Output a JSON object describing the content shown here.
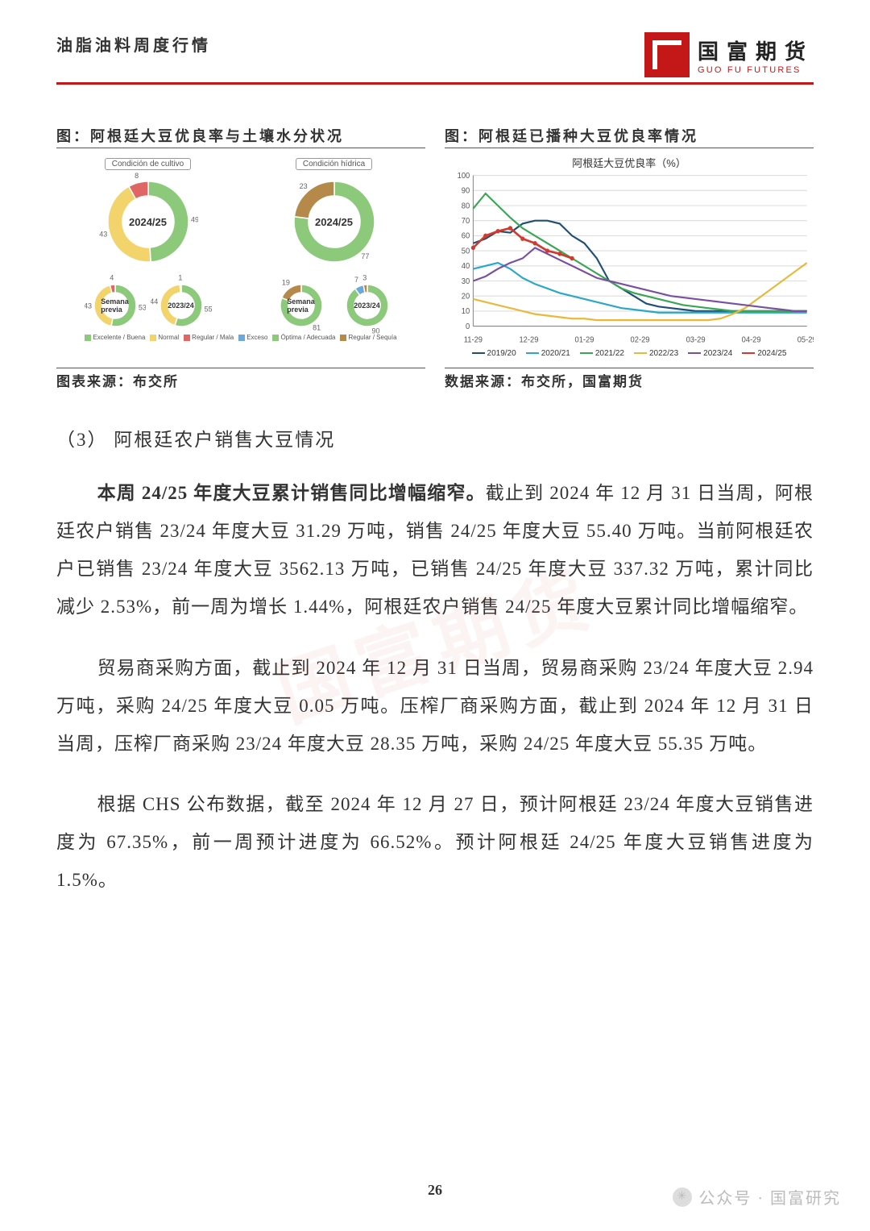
{
  "header": {
    "doc_title": "油脂油料周度行情",
    "logo_cn": "国富期货",
    "logo_en": "GUO FU FUTURES",
    "logo_bg": "#c41818"
  },
  "watermark_text": "国富期货",
  "chart_left": {
    "title": "图：阿根廷大豆优良率与土壤水分状况",
    "source_label": "图表来源：布交所",
    "header_cultivo": "Condición de cultivo",
    "header_hidrica": "Condición hídrica",
    "colors": {
      "excelente": "#8cc97a",
      "normal": "#f3d36b",
      "regular": "#e06666",
      "exceso": "#6aa9d9",
      "optima": "#8cc97a",
      "sequia": "#b5894a"
    },
    "legend_cultivo": [
      {
        "label": "Excelente / Buena",
        "key": "excelente"
      },
      {
        "label": "Normal",
        "key": "normal"
      },
      {
        "label": "Regular / Mala",
        "key": "regular"
      }
    ],
    "legend_hidrica": [
      {
        "label": "Exceso",
        "key": "exceso"
      },
      {
        "label": "Óptima / Adecuada",
        "key": "optima"
      },
      {
        "label": "Regular / Sequía",
        "key": "sequia"
      }
    ],
    "donuts": {
      "big_cultivo": {
        "center": "2024/25",
        "segments": [
          {
            "v": 49,
            "c": "excelente"
          },
          {
            "v": 43,
            "c": "normal"
          },
          {
            "v": 8,
            "c": "regular"
          }
        ]
      },
      "big_hidrica": {
        "center": "2024/25",
        "segments": [
          {
            "v": 77,
            "c": "optima"
          },
          {
            "v": 23,
            "c": "sequia"
          }
        ]
      },
      "sm_cultivo_prev": {
        "center": "Semana previa",
        "segments": [
          {
            "v": 53,
            "c": "excelente"
          },
          {
            "v": 43,
            "c": "normal"
          },
          {
            "v": 4,
            "c": "regular"
          }
        ]
      },
      "sm_cultivo_ly": {
        "center": "2023/24",
        "segments": [
          {
            "v": 55,
            "c": "excelente"
          },
          {
            "v": 44,
            "c": "normal"
          },
          {
            "v": 1,
            "c": "regular"
          }
        ]
      },
      "sm_hidrica_prev": {
        "center": "Semana previa",
        "segments": [
          {
            "v": 81,
            "c": "optima"
          },
          {
            "v": 19,
            "c": "sequia"
          }
        ]
      },
      "sm_hidrica_ly": {
        "center": "2023/24",
        "segments": [
          {
            "v": 90,
            "c": "optima"
          },
          {
            "v": 7,
            "c": "exceso"
          },
          {
            "v": 3,
            "c": "sequia"
          }
        ]
      }
    }
  },
  "chart_right": {
    "title": "图：阿根廷已播种大豆优良率情况",
    "inner_title": "阿根廷大豆优良率（%）",
    "source_label": "数据来源：布交所，国富期货",
    "ylim": [
      0,
      100
    ],
    "ytick_step": 10,
    "x_labels": [
      "11-29",
      "12-29",
      "01-29",
      "02-29",
      "03-29",
      "04-29",
      "05-29"
    ],
    "grid_color": "#dddddd",
    "background": "#ffffff",
    "series": [
      {
        "name": "2019/20",
        "color": "#1f4e79",
        "width": 2,
        "points": [
          55,
          58,
          63,
          62,
          68,
          70,
          70,
          68,
          60,
          55,
          45,
          30,
          25,
          20,
          15,
          13,
          12,
          11,
          10,
          10,
          10,
          10,
          10,
          10,
          10,
          10,
          10,
          10
        ]
      },
      {
        "name": "2020/21",
        "color": "#2aa8c9",
        "width": 2,
        "points": [
          38,
          40,
          42,
          38,
          32,
          28,
          25,
          22,
          20,
          18,
          16,
          14,
          12,
          11,
          10,
          9,
          9,
          9,
          9,
          9,
          9,
          9,
          9,
          9,
          9,
          9,
          9,
          9
        ]
      },
      {
        "name": "2021/22",
        "color": "#3aa655",
        "width": 2,
        "points": [
          78,
          88,
          80,
          72,
          65,
          60,
          55,
          50,
          45,
          40,
          35,
          30,
          25,
          22,
          20,
          18,
          16,
          14,
          13,
          12,
          11,
          10,
          10,
          10,
          10,
          10,
          10,
          10
        ]
      },
      {
        "name": "2022/23",
        "color": "#e8b93a",
        "width": 2,
        "points": [
          18,
          16,
          14,
          12,
          10,
          8,
          7,
          6,
          5,
          5,
          4,
          4,
          4,
          4,
          4,
          4,
          4,
          4,
          4,
          4,
          5,
          8,
          12,
          18,
          24,
          30,
          36,
          42
        ]
      },
      {
        "name": "2023/24",
        "color": "#7b4fa0",
        "width": 2,
        "points": [
          30,
          33,
          38,
          42,
          45,
          52,
          48,
          44,
          40,
          36,
          32,
          30,
          28,
          26,
          24,
          22,
          20,
          19,
          18,
          17,
          16,
          15,
          14,
          13,
          12,
          11,
          10,
          10
        ]
      },
      {
        "name": "2024/25",
        "color": "#d23a2e",
        "width": 2.5,
        "marker": "circle",
        "points": [
          52,
          60,
          63,
          65,
          58,
          55,
          50,
          48,
          45
        ]
      }
    ]
  },
  "section_head": "（3） 阿根廷农户销售大豆情况",
  "paragraphs": [
    "<strong>本周 24/25 年度大豆累计销售同比增幅缩窄。</strong>截止到 2024 年 12 月 31 日当周，阿根廷农户销售 23/24 年度大豆 31.29 万吨，销售 24/25 年度大豆 55.40 万吨。当前阿根廷农户已销售 23/24 年度大豆 3562.13 万吨，已销售 24/25 年度大豆 337.32 万吨，累计同比减少 2.53%，前一周为增长 1.44%，阿根廷农户销售 24/25 年度大豆累计同比增幅缩窄。",
    "贸易商采购方面，截止到 2024 年 12 月 31 日当周，贸易商采购 23/24 年度大豆 2.94 万吨，采购 24/25 年度大豆 0.05 万吨。压榨厂商采购方面，截止到 2024 年 12 月 31 日当周，压榨厂商采购 23/24 年度大豆 28.35 万吨，采购 24/25 年度大豆 55.35 万吨。",
    "根据 CHS 公布数据，截至 2024 年 12 月 27 日，预计阿根廷 23/24 年度大豆销售进度为 67.35%，前一周预计进度为 66.52%。预计阿根廷 24/25 年度大豆销售进度为 1.5%。"
  ],
  "page_number": "26",
  "footer_brand": "公众号 · 国富研究"
}
